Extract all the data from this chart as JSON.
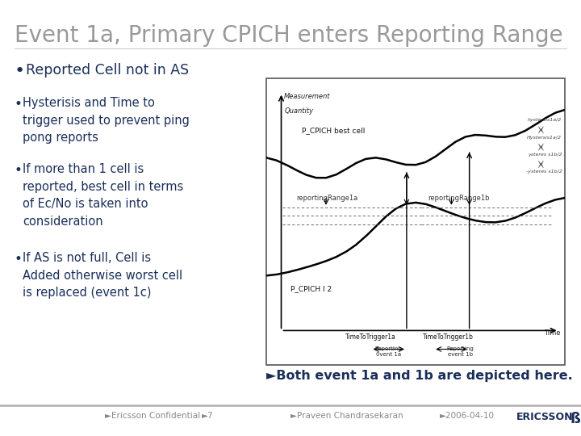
{
  "title": "Event 1a, Primary CPICH enters Reporting Range",
  "title_color": "#999999",
  "title_fontsize": 20,
  "bg_color": "#ffffff",
  "bullet1": " Reported Cell not in AS",
  "bullet2": "Hysterisis and Time to\ntrigger used to prevent ping\npong reports",
  "bullet3": "If more than 1 cell is\nreported, best cell in terms\nof Ec/No is taken into\nconsideration",
  "bullet4": "If AS is not full, Cell is\nAdded otherwise worst cell\nis replaced (event 1c)",
  "bullet_color": "#1a2f5a",
  "bullet_fontsize": 10.5,
  "bullet1_fontsize": 12.5,
  "summary_text": "►Both event 1a and 1b are depicted here.",
  "summary_fontsize": 11.5,
  "summary_color": "#1a2f5a",
  "footer_text_left": "►Ericsson Confidential",
  "footer_text_num": "►7",
  "footer_text_mid": "►Praveen Chandrasekaran",
  "footer_text_date": "►2006-04-10",
  "footer_color": "#888888",
  "footer_fontsize": 7.5,
  "ericsson_color": "#1a2f5a",
  "diag_bg": "#ffffff",
  "diag_border": "#555555"
}
